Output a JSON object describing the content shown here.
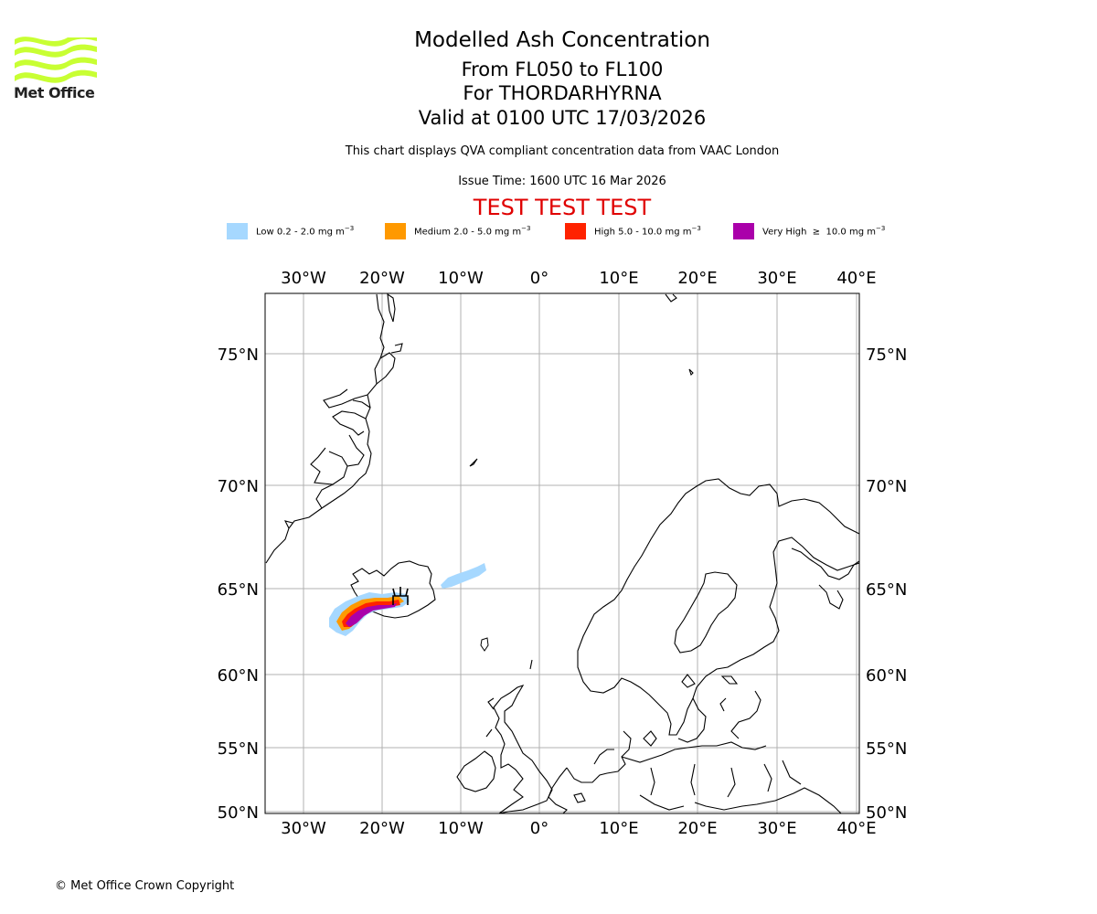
{
  "header": {
    "logo_name": "Met Office",
    "title": "Modelled Ash Concentration",
    "levels": "From FL050 to FL100",
    "volcano": "For THORDARHYRNA",
    "valid": "Valid at 0100 UTC 17/03/2026",
    "description": "This chart displays QVA compliant concentration data from VAAC London",
    "issue_time": "Issue Time: 1600 UTC 16 Mar 2026",
    "test_banner": "TEST TEST TEST"
  },
  "legend": {
    "items": [
      {
        "label": "Low 0.2 - 2.0 mg m",
        "color": "#a6d8ff"
      },
      {
        "label": "Medium 2.0 - 5.0 mg m",
        "color": "#ff9900"
      },
      {
        "label": "High 5.0 - 10.0 mg m",
        "color": "#ff2200"
      },
      {
        "label": "Very High  ≥  10.0 mg m",
        "color": "#aa00aa"
      }
    ],
    "unit_exponent": "−3"
  },
  "map": {
    "lon_range": [
      -35,
      40
    ],
    "lat_range": [
      50,
      77.5
    ],
    "lon_ticks": [
      "30°W",
      "20°W",
      "10°W",
      "0°",
      "10°E",
      "20°E",
      "30°E",
      "40°E"
    ],
    "lat_ticks": [
      "75°N",
      "70°N",
      "65°N",
      "60°N",
      "55°N",
      "50°N"
    ],
    "gridlines": true,
    "volcano_location": {
      "lat": 64.4,
      "lon": -17.6
    },
    "ash_colors": {
      "low": "#a6d8ff",
      "medium": "#ff9900",
      "high": "#ff2200",
      "very_high": "#aa00aa"
    }
  },
  "footer": {
    "copyright": "© Met Office Crown Copyright"
  }
}
